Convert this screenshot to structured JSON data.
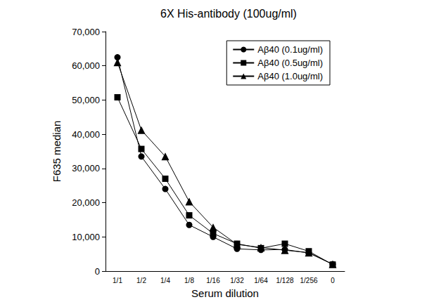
{
  "chart_data": {
    "type": "line",
    "title": "6X His-antibody (100ug/ml)",
    "x_label": "Serum dilution",
    "y_label": "F635 median",
    "categories": [
      "1/1",
      "1/2",
      "1/4",
      "1/8",
      "1/16",
      "1/32",
      "1/64",
      "1/128",
      "1/256",
      "0"
    ],
    "series": [
      {
        "name": "Aβ40 (0.1ug/ml)",
        "color": "#000000",
        "marker": "circle",
        "values": [
          62500,
          33500,
          24000,
          13500,
          10000,
          6500,
          6200,
          6300,
          5300,
          2000
        ]
      },
      {
        "name": "Aβ40 (0.5ug/ml)",
        "color": "#000000",
        "marker": "square",
        "values": [
          50800,
          35700,
          27000,
          16300,
          11000,
          8000,
          6700,
          8000,
          5800,
          1900
        ]
      },
      {
        "name": "Aβ40 (1.0ug/ml)",
        "color": "#000000",
        "marker": "triangle",
        "values": [
          61000,
          41200,
          33500,
          20300,
          12800,
          7800,
          6900,
          6100,
          5400,
          2000
        ]
      }
    ],
    "ylim": [
      0,
      70000
    ],
    "yticks": [
      0,
      10000,
      20000,
      30000,
      40000,
      50000,
      60000,
      70000
    ],
    "grid": false,
    "legend": "upper right"
  }
}
